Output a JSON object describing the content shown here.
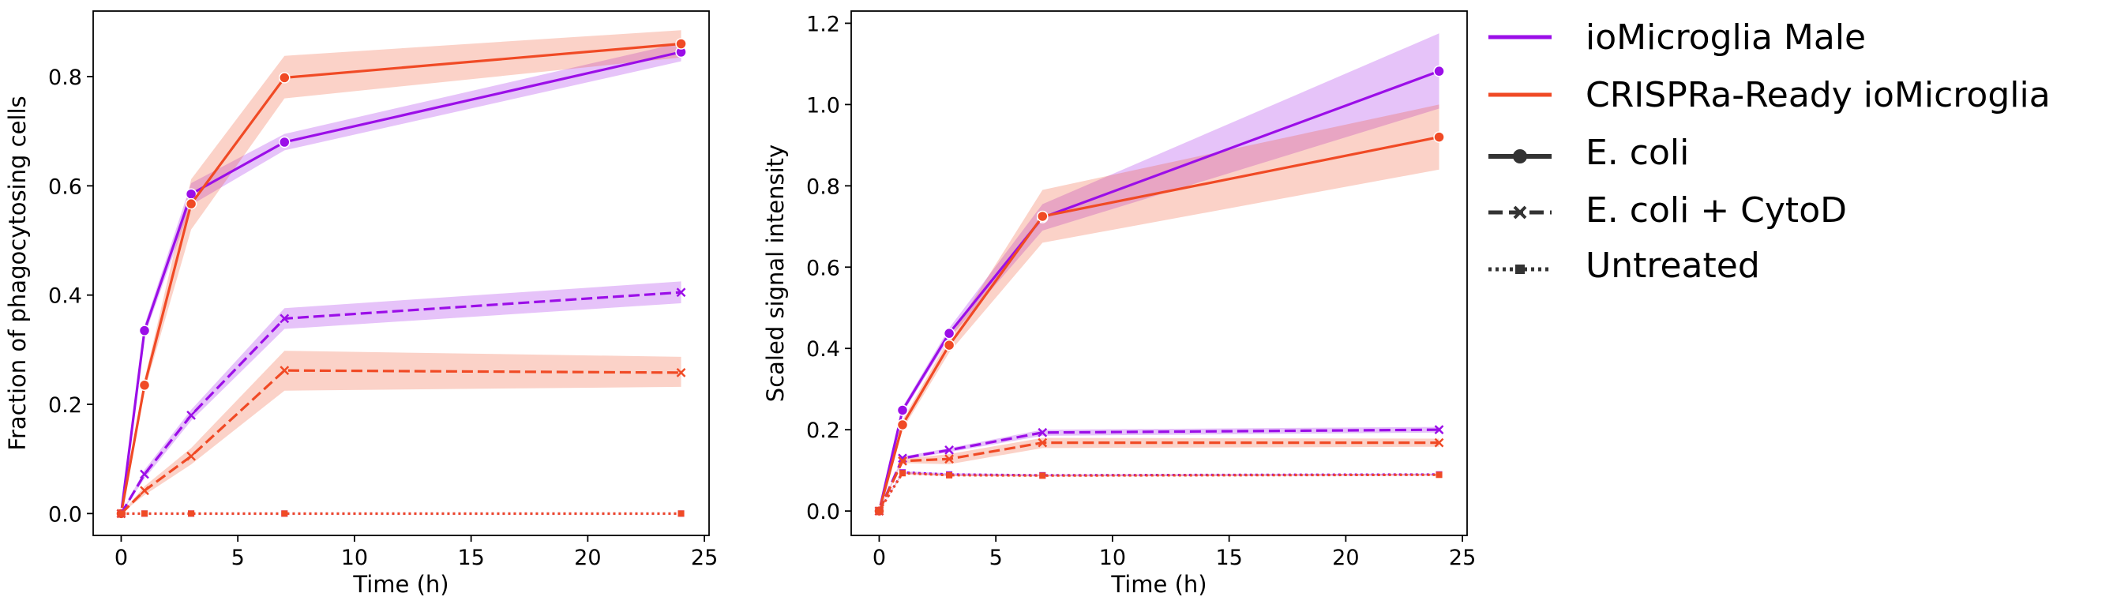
{
  "chart_data": [
    {
      "type": "line",
      "title": "",
      "xlabel": "Time (h)",
      "ylabel": "Fraction of phagocytosing cells",
      "xlim": [
        -1.2,
        25.2
      ],
      "ylim": [
        -0.04,
        0.92
      ],
      "xticks": [
        0,
        5,
        10,
        15,
        20,
        25
      ],
      "yticks": [
        0.0,
        0.2,
        0.4,
        0.6,
        0.8
      ],
      "ytick_labels": [
        "0.0",
        "0.2",
        "0.4",
        "0.6",
        "0.8"
      ],
      "grid": false,
      "series": [
        {
          "name": "ioMicroglia Male — E. coli",
          "line": "ioMicroglia Male",
          "style": "E. coli",
          "color": "#9b0ee8",
          "x": [
            0,
            1,
            3,
            7,
            24
          ],
          "y": [
            0.0,
            0.335,
            0.585,
            0.68,
            0.845
          ],
          "lower": [
            0.0,
            0.325,
            0.565,
            0.665,
            0.828
          ],
          "upper": [
            0.0,
            0.345,
            0.605,
            0.695,
            0.862
          ]
        },
        {
          "name": "CRISPRa-Ready ioMicroglia — E. coli",
          "line": "CRISPRa-Ready ioMicroglia",
          "style": "E. coli",
          "color": "#f04a25",
          "x": [
            0,
            1,
            3,
            7,
            24
          ],
          "y": [
            0.0,
            0.235,
            0.567,
            0.798,
            0.86
          ],
          "lower": [
            0.0,
            0.225,
            0.52,
            0.76,
            0.835
          ],
          "upper": [
            0.0,
            0.245,
            0.612,
            0.838,
            0.885
          ]
        },
        {
          "name": "ioMicroglia Male — E. coli + CytoD",
          "line": "ioMicroglia Male",
          "style": "E. coli + CytoD",
          "color": "#9b0ee8",
          "x": [
            0,
            1,
            3,
            7,
            24
          ],
          "y": [
            0.0,
            0.072,
            0.18,
            0.357,
            0.405
          ],
          "lower": [
            0.0,
            0.064,
            0.17,
            0.338,
            0.385
          ],
          "upper": [
            0.0,
            0.08,
            0.19,
            0.376,
            0.425
          ]
        },
        {
          "name": "CRISPRa-Ready ioMicroglia — E. coli + CytoD",
          "line": "CRISPRa-Ready ioMicroglia",
          "style": "E. coli + CytoD",
          "color": "#f04a25",
          "x": [
            0,
            1,
            3,
            7,
            24
          ],
          "y": [
            0.0,
            0.042,
            0.105,
            0.262,
            0.258
          ],
          "lower": [
            0.0,
            0.034,
            0.09,
            0.225,
            0.232
          ],
          "upper": [
            0.0,
            0.05,
            0.12,
            0.298,
            0.287
          ]
        },
        {
          "name": "ioMicroglia Male — Untreated",
          "line": "ioMicroglia Male",
          "style": "Untreated",
          "color": "#9b0ee8",
          "x": [
            0,
            1,
            3,
            7,
            24
          ],
          "y": [
            0.0,
            0.0,
            0.0,
            0.0,
            0.0
          ],
          "lower": [
            0.0,
            0.0,
            0.0,
            0.0,
            0.0
          ],
          "upper": [
            0.0,
            0.0,
            0.0,
            0.0,
            0.0
          ]
        },
        {
          "name": "CRISPRa-Ready ioMicroglia — Untreated",
          "line": "CRISPRa-Ready ioMicroglia",
          "style": "Untreated",
          "color": "#f04a25",
          "x": [
            0,
            1,
            3,
            7,
            24
          ],
          "y": [
            0.0,
            0.0,
            0.0,
            0.0,
            0.0
          ],
          "lower": [
            0.0,
            0.0,
            0.0,
            0.0,
            0.0
          ],
          "upper": [
            0.0,
            0.0,
            0.0,
            0.0,
            0.0
          ]
        }
      ]
    },
    {
      "type": "line",
      "title": "",
      "xlabel": "Time (h)",
      "ylabel": "Scaled signal intensity",
      "xlim": [
        -1.2,
        25.2
      ],
      "ylim": [
        -0.06,
        1.23
      ],
      "xticks": [
        0,
        5,
        10,
        15,
        20,
        25
      ],
      "yticks": [
        0.0,
        0.2,
        0.4,
        0.6,
        0.8,
        1.0,
        1.2
      ],
      "ytick_labels": [
        "0.0",
        "0.2",
        "0.4",
        "0.6",
        "0.8",
        "1.0",
        "1.2"
      ],
      "grid": false,
      "series": [
        {
          "name": "ioMicroglia Male — E. coli",
          "line": "ioMicroglia Male",
          "style": "E. coli",
          "color": "#9b0ee8",
          "x": [
            0,
            1,
            3,
            7,
            24
          ],
          "y": [
            0.0,
            0.248,
            0.437,
            0.722,
            1.082
          ],
          "lower": [
            0.0,
            0.24,
            0.425,
            0.69,
            0.99
          ],
          "upper": [
            0.0,
            0.256,
            0.45,
            0.755,
            1.175
          ]
        },
        {
          "name": "CRISPRa-Ready ioMicroglia — E. coli",
          "line": "CRISPRa-Ready ioMicroglia",
          "style": "E. coli",
          "color": "#f04a25",
          "x": [
            0,
            1,
            3,
            7,
            24
          ],
          "y": [
            0.0,
            0.212,
            0.408,
            0.725,
            0.92
          ],
          "lower": [
            0.0,
            0.2,
            0.39,
            0.66,
            0.84
          ],
          "upper": [
            0.0,
            0.224,
            0.425,
            0.79,
            1.0
          ]
        },
        {
          "name": "ioMicroglia Male — E. coli + CytoD",
          "line": "ioMicroglia Male",
          "style": "E. coli + CytoD",
          "color": "#9b0ee8",
          "x": [
            0,
            1,
            3,
            7,
            24
          ],
          "y": [
            0.0,
            0.13,
            0.15,
            0.193,
            0.2
          ],
          "lower": [
            0.0,
            0.126,
            0.145,
            0.185,
            0.193
          ],
          "upper": [
            0.0,
            0.134,
            0.155,
            0.2,
            0.207
          ]
        },
        {
          "name": "CRISPRa-Ready ioMicroglia — E. coli + CytoD",
          "line": "CRISPRa-Ready ioMicroglia",
          "style": "E. coli + CytoD",
          "color": "#f04a25",
          "x": [
            0,
            1,
            3,
            7,
            24
          ],
          "y": [
            0.0,
            0.123,
            0.128,
            0.168,
            0.168
          ],
          "lower": [
            0.0,
            0.118,
            0.115,
            0.155,
            0.158
          ],
          "upper": [
            0.0,
            0.128,
            0.14,
            0.18,
            0.178
          ]
        },
        {
          "name": "ioMicroglia Male — Untreated",
          "line": "ioMicroglia Male",
          "style": "Untreated",
          "color": "#9b0ee8",
          "x": [
            0,
            1,
            3,
            7,
            24
          ],
          "y": [
            0.0,
            0.095,
            0.09,
            0.088,
            0.09
          ],
          "lower": [
            0.0,
            0.092,
            0.087,
            0.086,
            0.088
          ],
          "upper": [
            0.0,
            0.098,
            0.093,
            0.09,
            0.092
          ]
        },
        {
          "name": "CRISPRa-Ready ioMicroglia — Untreated",
          "line": "CRISPRa-Ready ioMicroglia",
          "style": "Untreated",
          "color": "#f04a25",
          "x": [
            0,
            1,
            3,
            7,
            24
          ],
          "y": [
            0.0,
            0.093,
            0.088,
            0.087,
            0.089
          ],
          "lower": [
            0.0,
            0.09,
            0.086,
            0.085,
            0.087
          ],
          "upper": [
            0.0,
            0.096,
            0.09,
            0.089,
            0.091
          ]
        }
      ]
    }
  ],
  "legend": {
    "placement": "right of charts",
    "color_entries": [
      {
        "label": "ioMicroglia Male",
        "color": "#9b0ee8"
      },
      {
        "label": "CRISPRa-Ready ioMicroglia",
        "color": "#f04a25"
      }
    ],
    "style_entries": [
      {
        "label": "E. coli",
        "dash": "solid",
        "marker": "circle"
      },
      {
        "label": "E. coli + CytoD",
        "dash": "dashed",
        "marker": "x"
      },
      {
        "label": "Untreated",
        "dash": "dotted",
        "marker": "square"
      }
    ]
  }
}
